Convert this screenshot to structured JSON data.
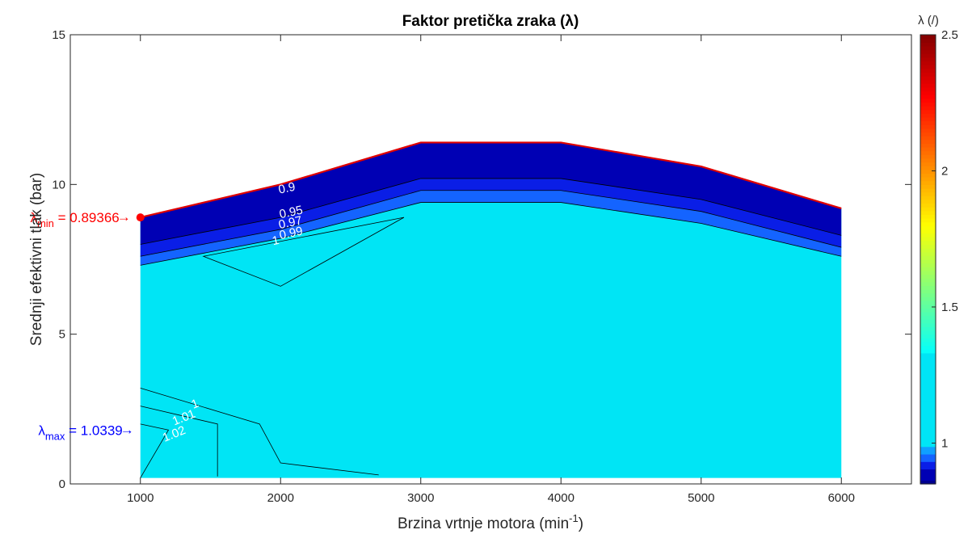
{
  "chart_data": {
    "type": "contour",
    "title": "Faktor pretička zraka (λ)",
    "xlabel": "Brzina vrtnje motora (min",
    "xlabel_sup": "-1",
    "xlabel_end": ")",
    "ylabel": "Srednji efektivni tlak (bar)",
    "xlim": [
      500,
      6500
    ],
    "ylim": [
      0,
      15
    ],
    "xticks": [
      "1000",
      "2000",
      "3000",
      "4000",
      "5000",
      "6000"
    ],
    "yticks": [
      "0",
      "5",
      "10",
      "15"
    ],
    "grid": false,
    "x": [
      1000,
      2000,
      3000,
      4000,
      5000,
      6000
    ],
    "upper_boundary_bar": [
      8.9,
      10.0,
      11.4,
      11.4,
      10.6,
      9.2
    ],
    "lower_boundary_bar": [
      0.2,
      0.2,
      0.2,
      0.2,
      0.2,
      0.2
    ],
    "contour_levels": [
      {
        "value": 0.9,
        "label": "0.9",
        "color": "#0000b4",
        "y": [
          8.9,
          10.0,
          11.4,
          11.4,
          10.6,
          9.2
        ]
      },
      {
        "value": 0.95,
        "label": "0.95",
        "color": "#0a1ee6",
        "y": [
          8.0,
          8.9,
          10.2,
          10.2,
          9.5,
          8.3
        ]
      },
      {
        "value": 0.97,
        "label": "0.97",
        "color": "#1464ff",
        "y": [
          7.6,
          8.5,
          9.8,
          9.8,
          9.1,
          7.9
        ]
      },
      {
        "value": 0.99,
        "label": "0.99",
        "color": "#10a0ff",
        "y": [
          7.3,
          8.2,
          9.4,
          9.4,
          8.7,
          7.6
        ]
      },
      {
        "value": 1.0,
        "label": "1",
        "color": "#00e5f5",
        "y": null
      }
    ],
    "inner_contour_upper": [
      [
        1450,
        7.6
      ],
      [
        2880,
        8.9
      ],
      [
        2000,
        6.6
      ]
    ],
    "inner_contour_lower": [
      {
        "label": "1",
        "points": [
          [
            1000,
            3.2
          ],
          [
            1850,
            2.0
          ],
          [
            2000,
            0.7
          ],
          [
            2700,
            0.3
          ]
        ]
      },
      {
        "label": "1.01",
        "points": [
          [
            1000,
            2.6
          ],
          [
            1550,
            2.0
          ],
          [
            1550,
            0.25
          ]
        ]
      },
      {
        "label": "1.02",
        "points": [
          [
            1000,
            2.0
          ],
          [
            1200,
            1.8
          ],
          [
            1000,
            0.2
          ]
        ]
      }
    ],
    "fill_color": "#00e5f5",
    "boundary_color": "#e00000",
    "lambda_min": {
      "label": "λ",
      "sub": "min",
      "text": " = 0.89366",
      "x": 1000,
      "y": 8.9,
      "color": "#ff0000"
    },
    "lambda_max": {
      "label": "λ",
      "sub": "max",
      "text": " = 1.0339",
      "x": 1000,
      "y": 1.9,
      "color": "#0000ff"
    },
    "colorbar": {
      "label": "λ (/)",
      "range": [
        0.85,
        2.5
      ],
      "ticks": [
        "1",
        "1.5",
        "2",
        "2.5"
      ],
      "tick_values": [
        1,
        1.5,
        2,
        2.5
      ],
      "colors": [
        "#00008f",
        "#0000b4",
        "#0a1ee6",
        "#1464ff",
        "#10a0ff",
        "#00e5f5",
        "#00e5f5",
        "#00e5f5",
        "#00e5f5",
        "#00e5f5",
        "#00e5f5",
        "#00e5f5",
        "#00e5f5",
        "#00e5f5",
        "#00e5f5",
        "#00e5f5",
        "#00e5f5",
        "#00e5f5",
        "#00e5f5",
        "#00e5f5",
        "#00e5f5",
        "#00e5f5",
        "#00e5f5",
        "#00e5f5",
        "#00e5f5",
        "#00e5f5",
        "#00e5f5",
        "#00e5f5",
        "#00e5f5",
        "#00e5f5",
        "#00e5f5",
        "#00e5f5",
        "#00e5f5",
        "#00e5f5",
        "#00e5f5",
        "#00e5f5",
        "#00e5f5",
        "#00e5f5",
        "#00e5f5",
        "#00e5f5",
        "#00e5f5",
        "#00e5f5",
        "#00e5f5",
        "#00e5f5",
        "#00e5f5",
        "#00e5f5",
        "#00e5f5",
        "#00e5f5",
        "#00e5f5",
        "#00e5f5",
        "#00e5f5",
        "#00e5f5",
        "#00e5f5",
        "#00e5f5",
        "#00e5f5",
        "#00e5f5",
        "#00e5f5",
        "#00e5f5",
        "#00e5f5",
        "#00e5f5",
        "#00e5f5",
        "#00e5f5",
        "#00e5f5",
        "#00e5f5",
        "#00e5f5",
        "#00e5f5",
        "#00e5f5",
        "#00e5f5",
        "#00e5f5",
        "#00e5f5",
        "#00e5f5",
        "#00e5f5",
        "#00e5f5",
        "#00e5f5",
        "#00e5f5",
        "#00e5f5",
        "#00e5f5",
        "#00e5f5",
        "#00e5f5",
        "#00e5f5",
        "#00e5f5",
        "#00e5f5",
        "#00e5f5",
        "#00e5f5",
        "#00e5f5",
        "#00e5f5",
        "#00e5f5",
        "#00e5f5",
        "#00e5f5",
        "#00e5f5",
        "#00e5f5",
        "#00e5f5",
        "#00e5f5",
        "#00e5f5",
        "#00e5f5",
        "#00e5f5",
        "#00e5f5",
        "#00e5f5",
        "#00e5f5",
        "#00e5f5",
        "#00e5f5",
        "#00e5f5",
        "#00e5f5",
        "#00e5f5",
        "#00e5f5",
        "#00e5f5",
        "#00e5f5",
        "#00e5f5",
        "#00e5f5",
        "#00e5f5",
        "#00e5f5",
        "#00e5f5"
      ]
    }
  }
}
